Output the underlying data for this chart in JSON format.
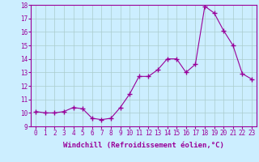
{
  "x": [
    0,
    1,
    2,
    3,
    4,
    5,
    6,
    7,
    8,
    9,
    10,
    11,
    12,
    13,
    14,
    15,
    16,
    17,
    18,
    19,
    20,
    21,
    22,
    23
  ],
  "y": [
    10.1,
    10.0,
    10.0,
    10.1,
    10.4,
    10.3,
    9.6,
    9.5,
    9.6,
    10.4,
    11.4,
    12.7,
    12.7,
    13.2,
    14.0,
    14.0,
    13.0,
    13.6,
    17.9,
    17.4,
    16.1,
    15.0,
    12.9,
    12.5
  ],
  "line_color": "#990099",
  "marker": "+",
  "marker_size": 4,
  "bg_color": "#cceeff",
  "grid_color": "#aacccc",
  "xlim": [
    -0.5,
    23.5
  ],
  "ylim": [
    9,
    18
  ],
  "yticks": [
    9,
    10,
    11,
    12,
    13,
    14,
    15,
    16,
    17,
    18
  ],
  "xtick_labels": [
    "0",
    "1",
    "2",
    "3",
    "4",
    "5",
    "6",
    "7",
    "8",
    "9",
    "10",
    "11",
    "12",
    "13",
    "14",
    "15",
    "16",
    "17",
    "18",
    "19",
    "20",
    "21",
    "22",
    "23"
  ],
  "xlabel": "Windchill (Refroidissement éolien,°C)",
  "xlabel_color": "#990099",
  "tick_color": "#990099",
  "axis_label_fontsize": 6.5,
  "tick_fontsize": 5.5
}
